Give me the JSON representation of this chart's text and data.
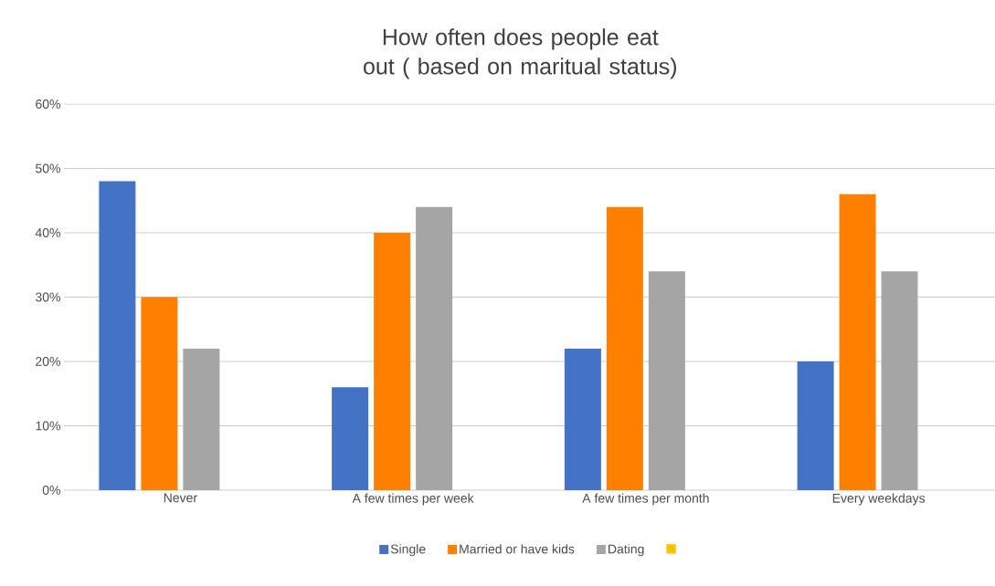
{
  "chart_data": {
    "type": "bar",
    "title": "How often does people eat out ( based on maritual status)",
    "categories": [
      "Never",
      "A few times per week",
      "A few times per month",
      "Every weekdays"
    ],
    "series": [
      {
        "name": "Single",
        "color": "#4472c4",
        "values": [
          48,
          16,
          22,
          20
        ]
      },
      {
        "name": "Married or have kids",
        "color": "#ff7f00",
        "values": [
          30,
          40,
          44,
          46
        ]
      },
      {
        "name": "Dating",
        "color": "#a5a5a5",
        "values": [
          22,
          44,
          34,
          34
        ]
      },
      {
        "color": "#ffc000",
        "values": [
          null,
          null,
          null,
          null
        ]
      }
    ],
    "ylim": [
      0,
      60
    ],
    "yticks": [
      {
        "value": 0,
        "label": "0%"
      },
      {
        "value": 10,
        "label": "10%"
      },
      {
        "value": 20,
        "label": "20%"
      },
      {
        "value": 30,
        "label": "30%"
      },
      {
        "value": 40,
        "label": "40%"
      },
      {
        "value": 50,
        "label": "50%"
      },
      {
        "value": 60,
        "label": "60%"
      }
    ],
    "grid": "y",
    "legend": "bottom"
  }
}
